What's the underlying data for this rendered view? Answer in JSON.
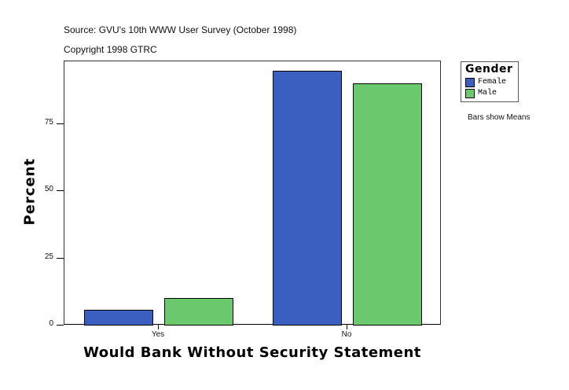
{
  "header": {
    "source": "Source: GVU's 10th WWW User Survey (October 1998)",
    "copyright": "Copyright 1998 GTRC"
  },
  "legend": {
    "title": "Gender",
    "items": [
      {
        "label": "Female",
        "color": "#3a5fc0"
      },
      {
        "label": "Male",
        "color": "#6cc86c"
      }
    ],
    "note": "Bars show Means"
  },
  "axes": {
    "ylabel": "Percent",
    "xlabel": "Would Bank Without Security Statement",
    "yticks": [
      "0",
      "25",
      "50",
      "75"
    ],
    "xticks": [
      "Yes",
      "No"
    ]
  },
  "chart_data": {
    "type": "bar",
    "title": "",
    "subtitle": "Source: GVU's 10th WWW User Survey (October 1998) / Copyright 1998 GTRC",
    "categories": [
      "Yes",
      "No"
    ],
    "series": [
      {
        "name": "Female",
        "color": "#3a5fc0",
        "values": [
          5.5,
          94.5
        ]
      },
      {
        "name": "Male",
        "color": "#6cc86c",
        "values": [
          10.0,
          90.0
        ]
      }
    ],
    "xlabel": "Would Bank Without Security Statement",
    "ylabel": "Percent",
    "ylim": [
      0,
      98
    ],
    "yticks": [
      0,
      25,
      50,
      75
    ],
    "grid": false,
    "legend_title": "Gender",
    "legend_position": "right",
    "annotations": [
      "Bars show Means"
    ]
  }
}
